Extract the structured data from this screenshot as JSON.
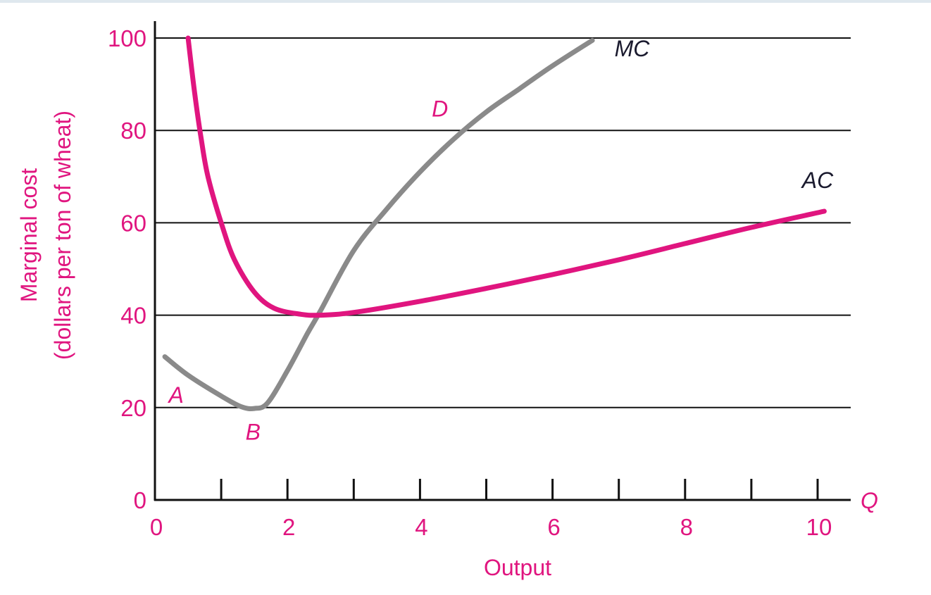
{
  "colors": {
    "accent": "#e0157f",
    "mc_curve": "#8a8a8a",
    "ac_curve": "#e0157f",
    "grid": "#111111",
    "axis": "#111111",
    "label_dark": "#1a1a2e"
  },
  "chart_data": {
    "type": "line",
    "title": "",
    "xlabel": "Output",
    "ylabel_line1": "Marginal cost",
    "ylabel_line2": "(dollars per ton of wheat)",
    "x_axis_symbol": "Q",
    "xlim": [
      0,
      10.5
    ],
    "ylim": [
      0,
      100
    ],
    "x_ticks": [
      0,
      1,
      2,
      3,
      4,
      5,
      6,
      7,
      8,
      9,
      10
    ],
    "x_tick_labels": [
      {
        "value": 0,
        "label": "0"
      },
      {
        "value": 2,
        "label": "2"
      },
      {
        "value": 4,
        "label": "4"
      },
      {
        "value": 6,
        "label": "6"
      },
      {
        "value": 8,
        "label": "8"
      },
      {
        "value": 10,
        "label": "10"
      }
    ],
    "y_ticks": [
      {
        "value": 0,
        "label": "0"
      },
      {
        "value": 20,
        "label": "20"
      },
      {
        "value": 40,
        "label": "40"
      },
      {
        "value": 60,
        "label": "60"
      },
      {
        "value": 80,
        "label": "80"
      },
      {
        "value": 100,
        "label": "100"
      }
    ],
    "grid": true,
    "series": [
      {
        "name": "MC",
        "color": "#8a8a8a",
        "points": [
          [
            0.15,
            31
          ],
          [
            0.5,
            27
          ],
          [
            1.0,
            22.5
          ],
          [
            1.3,
            20.2
          ],
          [
            1.5,
            19.8
          ],
          [
            1.7,
            21
          ],
          [
            2.0,
            28
          ],
          [
            2.3,
            36
          ],
          [
            2.5,
            41
          ],
          [
            3.0,
            54
          ],
          [
            3.5,
            63
          ],
          [
            4.0,
            71
          ],
          [
            4.5,
            78
          ],
          [
            5.0,
            84
          ],
          [
            5.5,
            89
          ],
          [
            6.0,
            94
          ],
          [
            6.6,
            99.5
          ]
        ]
      },
      {
        "name": "AC",
        "color": "#e0157f",
        "points": [
          [
            0.5,
            100
          ],
          [
            0.6,
            88
          ],
          [
            0.7,
            78
          ],
          [
            0.8,
            70
          ],
          [
            1.0,
            60
          ],
          [
            1.2,
            52
          ],
          [
            1.5,
            45
          ],
          [
            1.8,
            41.5
          ],
          [
            2.2,
            40.2
          ],
          [
            2.5,
            40.0
          ],
          [
            3.0,
            40.6
          ],
          [
            4.0,
            43
          ],
          [
            5.0,
            45.8
          ],
          [
            6.0,
            48.8
          ],
          [
            7.0,
            52
          ],
          [
            8.0,
            55.5
          ],
          [
            9.0,
            59
          ],
          [
            10.1,
            62.5
          ]
        ]
      }
    ],
    "annotations": [
      {
        "text": "MC",
        "x": 7.2,
        "y": 96
      },
      {
        "text": "AC",
        "x": 10.0,
        "y": 67.5
      },
      {
        "text": "D",
        "x": 4.3,
        "y": 83
      },
      {
        "text": "A",
        "x": 0.32,
        "y": 21
      },
      {
        "text": "B",
        "x": 1.48,
        "y": 13
      }
    ]
  }
}
